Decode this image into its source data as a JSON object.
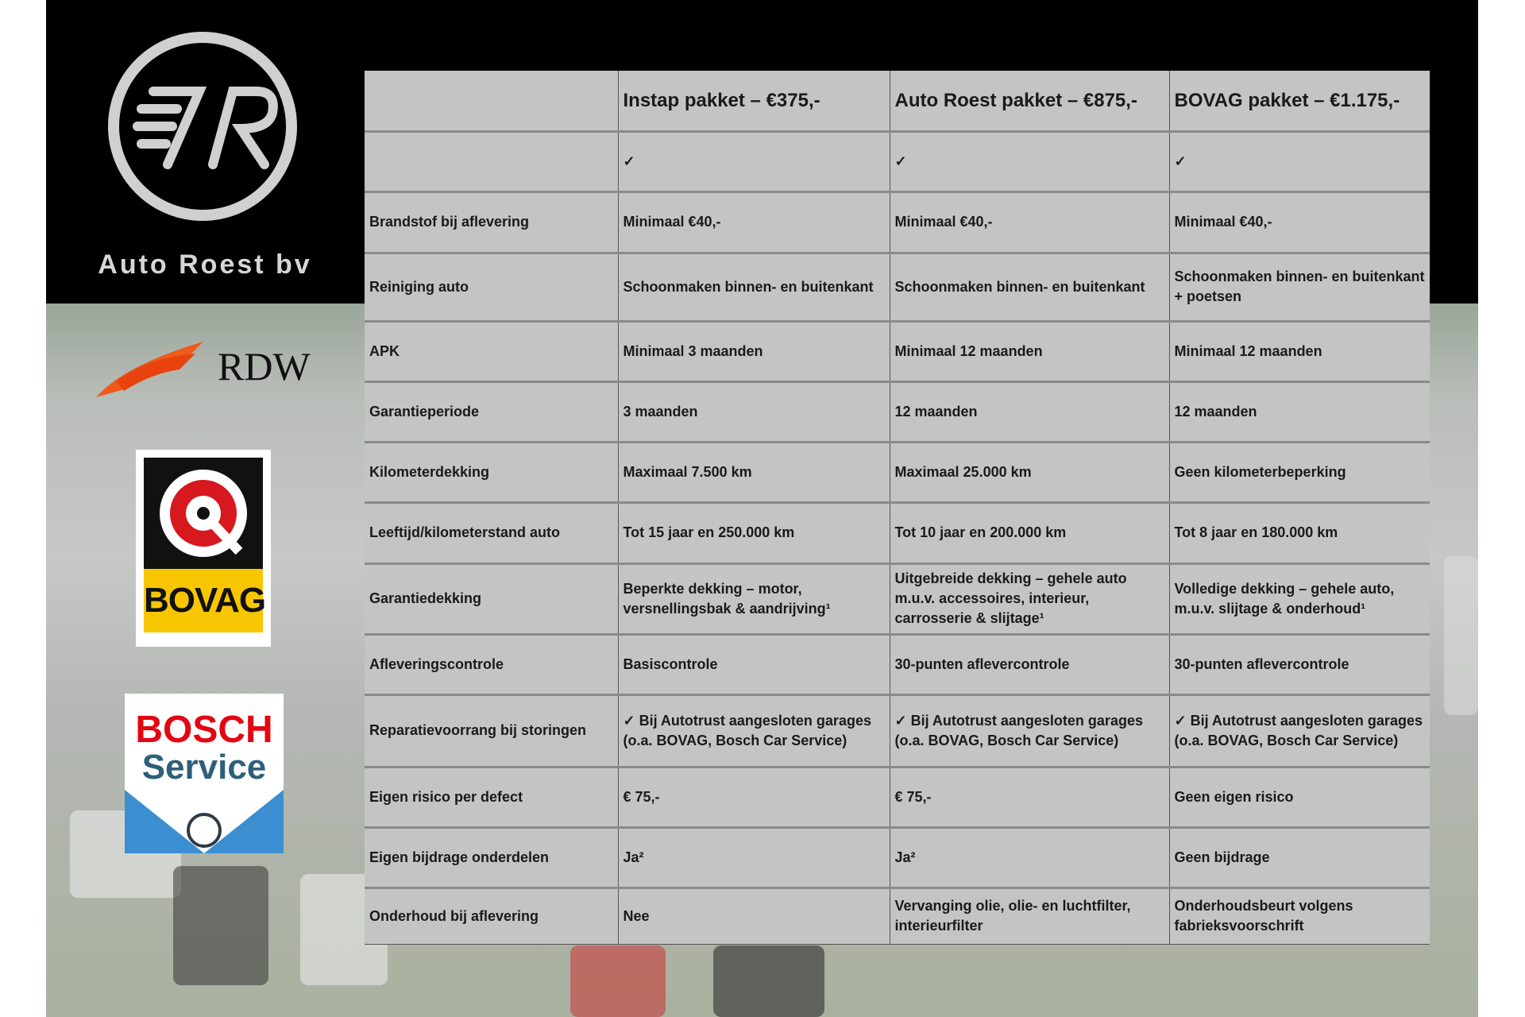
{
  "brand": {
    "name": "Auto Roest bv",
    "logo_letters": "7R"
  },
  "logos": {
    "rdw": "RDW",
    "bovag": "BOVAG",
    "bosch_line1": "BOSCH",
    "bosch_line2": "Service"
  },
  "table": {
    "headers": [
      "",
      "Instap pakket – €375,-",
      "Auto Roest pakket – €875,-",
      "BOVAG pakket – €1.175,-"
    ],
    "rows": [
      [
        "",
        "✓",
        "✓",
        "✓"
      ],
      [
        "Brandstof bij aflevering",
        "Minimaal €40,-",
        "Minimaal €40,-",
        "Minimaal €40,-"
      ],
      [
        "Reiniging auto",
        "Schoonmaken binnen- en buitenkant",
        "Schoonmaken binnen- en buitenkant",
        "Schoonmaken binnen- en buitenkant + poetsen"
      ],
      [
        "APK",
        "Minimaal 3 maanden",
        "Minimaal 12 maanden",
        "Minimaal 12 maanden"
      ],
      [
        "Garantieperiode",
        "3 maanden",
        "12 maanden",
        "12 maanden"
      ],
      [
        "Kilometerdekking",
        "Maximaal 7.500 km",
        "Maximaal 25.000 km",
        "Geen kilometerbeperking"
      ],
      [
        "Leeftijd/kilometerstand auto",
        "Tot 15 jaar en 250.000 km",
        "Tot 10 jaar en 200.000 km",
        "Tot 8 jaar en 180.000 km"
      ],
      [
        "Garantiedekking",
        "Beperkte dekking – motor, versnellingsbak & aandrijving¹",
        "Uitgebreide dekking – gehele auto m.u.v. accessoires, interieur, carrosserie & slijtage¹",
        "Volledige dekking – gehele auto, m.u.v. slijtage & onderhoud¹"
      ],
      [
        "Afleveringscontrole",
        "Basiscontrole",
        "30-punten aflevercontrole",
        "30-punten aflevercontrole"
      ],
      [
        "Reparatievoorrang bij storingen",
        "✓ Bij Autotrust aangesloten garages (o.a. BOVAG, Bosch Car Service)",
        "✓ Bij Autotrust aangesloten garages (o.a. BOVAG, Bosch Car Service)",
        "✓ Bij Autotrust aangesloten garages (o.a. BOVAG, Bosch Car Service)"
      ],
      [
        "Eigen risico per defect",
        "€ 75,-",
        "€ 75,-",
        "Geen eigen risico"
      ],
      [
        "Eigen bijdrage onderdelen",
        "Ja²",
        "Ja²",
        "Geen bijdrage"
      ],
      [
        "Onderhoud bij aflevering",
        "Nee",
        "Vervanging olie, olie- en luchtfilter, interieurfilter",
        "Onderhoudsbeurt volgens fabrieksvoorschrift"
      ]
    ]
  }
}
